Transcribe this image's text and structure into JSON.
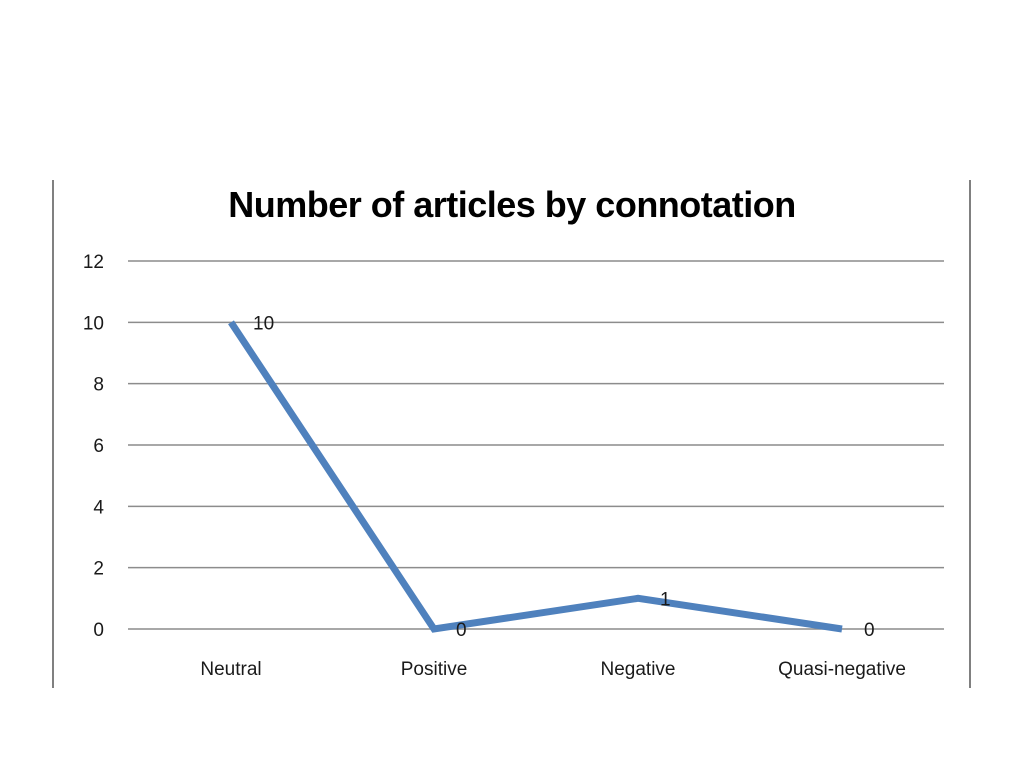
{
  "chart_data": {
    "type": "line",
    "title": "Number of articles by connotation",
    "xlabel": "",
    "ylabel": "",
    "categories": [
      "Neutral",
      "Positive",
      "Negative",
      "Quasi-negative"
    ],
    "series": [
      {
        "values": [
          10,
          0,
          1,
          0
        ],
        "color": "#4f81bd"
      }
    ],
    "data_labels": [
      "10",
      "0",
      "1",
      "0"
    ],
    "ylim": [
      0,
      12
    ],
    "yticks": [
      0,
      2,
      4,
      6,
      8,
      10,
      12
    ],
    "grid": true,
    "legend": "none"
  }
}
